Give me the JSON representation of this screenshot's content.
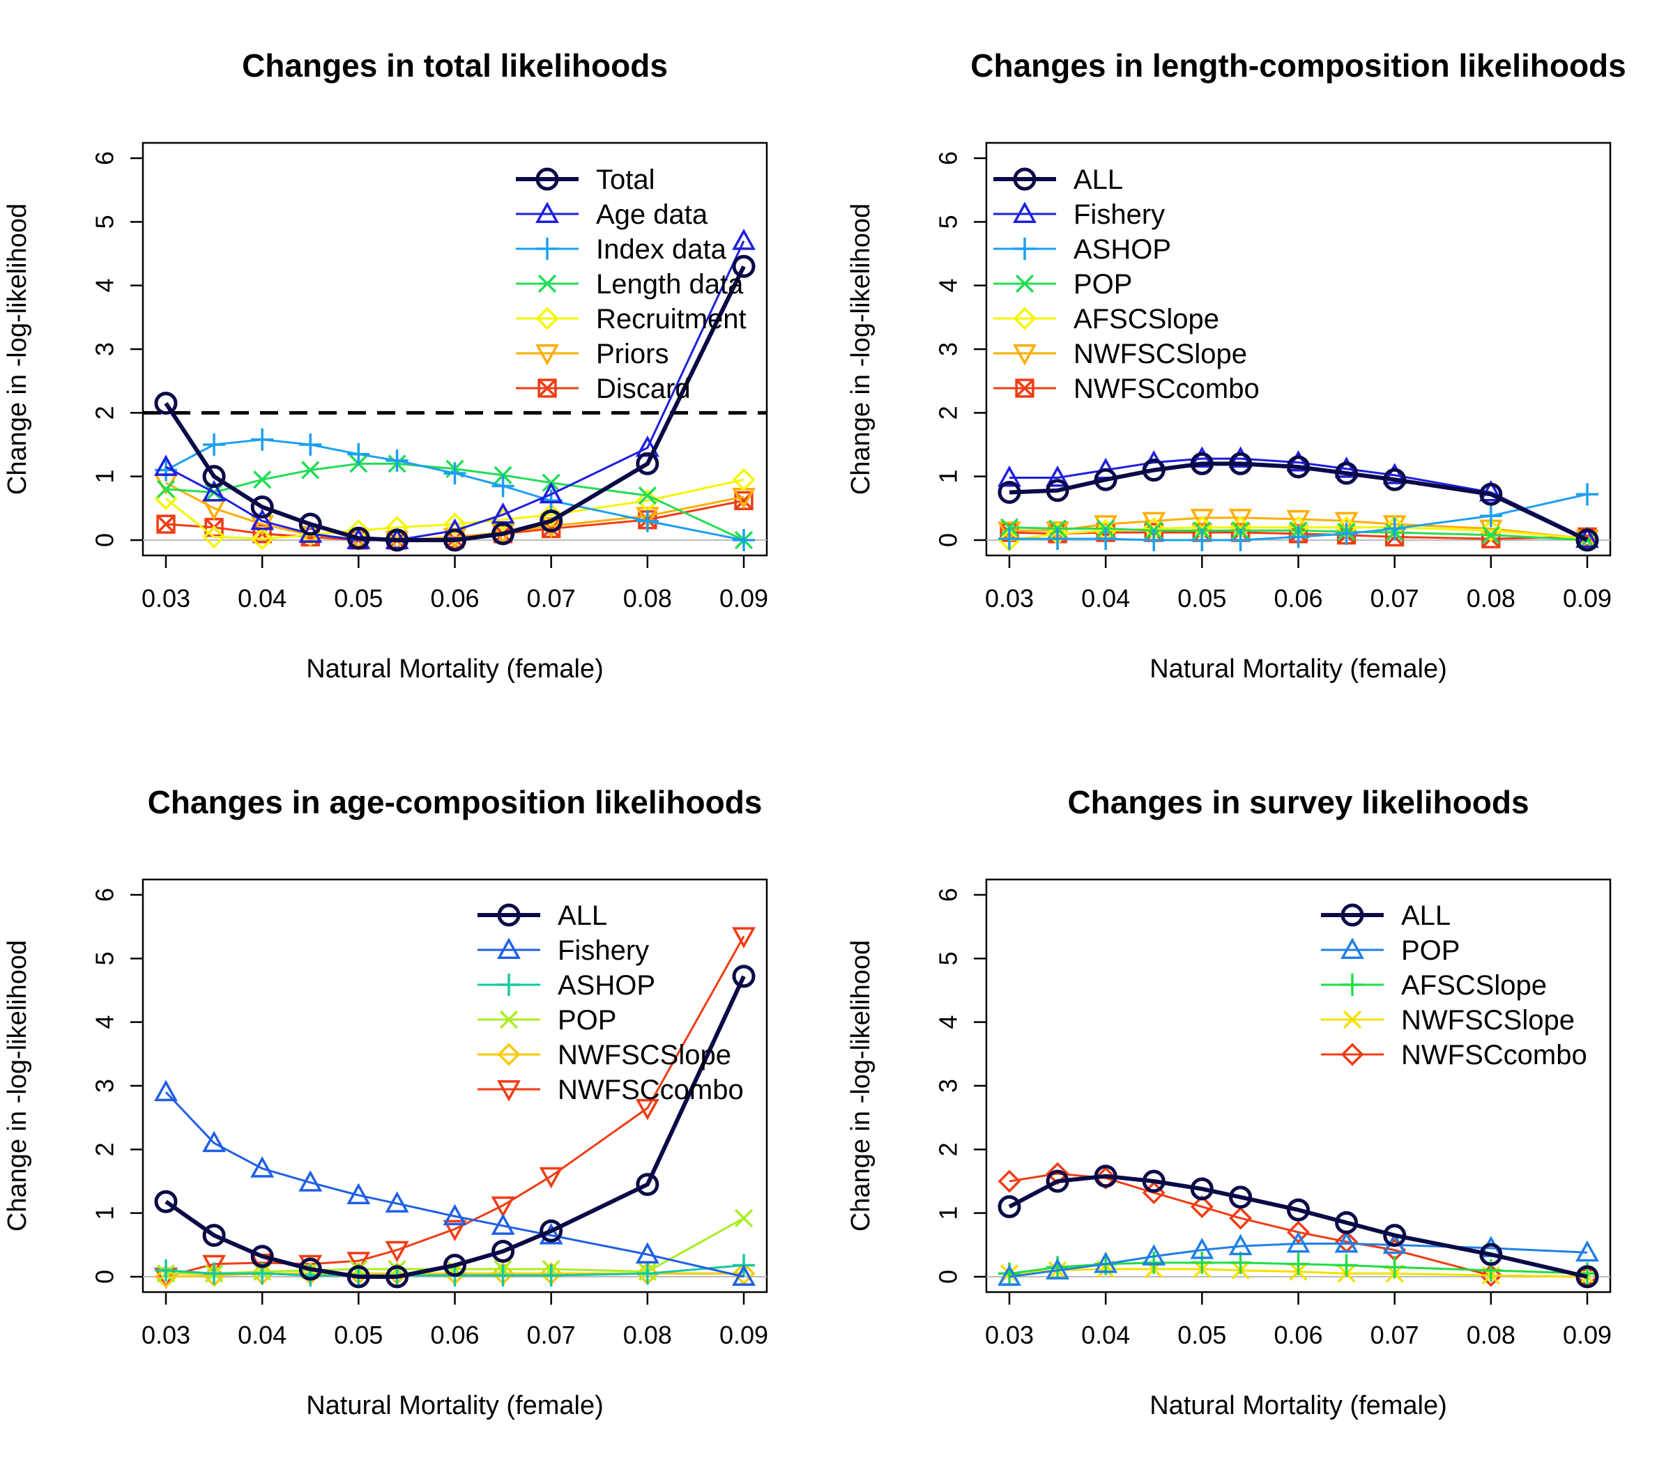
{
  "chart_data": [
    {
      "type": "line",
      "title": "Changes in total likelihoods",
      "xlabel": "Natural Mortality (female)",
      "ylabel": "Change in -log-likelihood",
      "xlim": [
        0.03,
        0.09
      ],
      "ylim": [
        0,
        6
      ],
      "xticks": [
        "0.03",
        "0.04",
        "0.05",
        "0.06",
        "0.07",
        "0.08",
        "0.09"
      ],
      "yticks": [
        "0",
        "1",
        "2",
        "3",
        "4",
        "5",
        "6"
      ],
      "x": [
        0.03,
        0.035,
        0.04,
        0.045,
        0.05,
        0.054,
        0.06,
        0.065,
        0.07,
        0.08,
        0.09
      ],
      "legend_position": "top-right",
      "reference_line": 2,
      "series": [
        {
          "name": "Total",
          "color": "#0a0a47",
          "marker": "circle",
          "width": 6,
          "values": [
            2.15,
            1.0,
            0.52,
            0.25,
            0.03,
            0.0,
            0.0,
            0.1,
            0.3,
            1.2,
            4.3
          ]
        },
        {
          "name": "Age data",
          "color": "#1f1fe0",
          "marker": "triangle-up",
          "width": 3,
          "values": [
            1.15,
            0.75,
            0.3,
            0.1,
            0.0,
            0.0,
            0.15,
            0.4,
            0.72,
            1.45,
            4.7
          ]
        },
        {
          "name": "Index data",
          "color": "#1c9ff0",
          "marker": "plus",
          "width": 3,
          "values": [
            1.1,
            1.5,
            1.58,
            1.5,
            1.35,
            1.25,
            1.05,
            0.85,
            0.62,
            0.3,
            0.0
          ]
        },
        {
          "name": "Length data",
          "color": "#22dd55",
          "marker": "cross",
          "width": 3,
          "values": [
            0.8,
            0.75,
            0.95,
            1.1,
            1.2,
            1.2,
            1.12,
            1.02,
            0.9,
            0.7,
            0.0
          ]
        },
        {
          "name": "Recruitment",
          "color": "#f5f500",
          "marker": "diamond",
          "width": 3,
          "values": [
            0.65,
            0.05,
            0.02,
            0.08,
            0.15,
            0.2,
            0.25,
            0.32,
            0.4,
            0.62,
            0.95
          ]
        },
        {
          "name": "Priors",
          "color": "#ffae00",
          "marker": "triangle-down",
          "width": 3,
          "values": [
            0.9,
            0.5,
            0.25,
            0.08,
            0.02,
            0.0,
            0.05,
            0.12,
            0.22,
            0.38,
            0.68
          ]
        },
        {
          "name": "Discard",
          "color": "#f03c14",
          "marker": "square-x",
          "width": 3,
          "values": [
            0.25,
            0.2,
            0.1,
            0.05,
            0.0,
            0.0,
            0.02,
            0.1,
            0.18,
            0.32,
            0.62
          ]
        }
      ]
    },
    {
      "type": "line",
      "title": "Changes in length-composition likelihoods",
      "xlabel": "Natural Mortality (female)",
      "ylabel": "Change in -log-likelihood",
      "xlim": [
        0.03,
        0.09
      ],
      "ylim": [
        0,
        6
      ],
      "xticks": [
        "0.03",
        "0.04",
        "0.05",
        "0.06",
        "0.07",
        "0.08",
        "0.09"
      ],
      "yticks": [
        "0",
        "1",
        "2",
        "3",
        "4",
        "5",
        "6"
      ],
      "x": [
        0.03,
        0.035,
        0.04,
        0.045,
        0.05,
        0.054,
        0.06,
        0.065,
        0.07,
        0.08,
        0.09
      ],
      "legend_position": "top-left",
      "series": [
        {
          "name": "ALL",
          "color": "#0a0a47",
          "marker": "circle",
          "width": 6,
          "values": [
            0.75,
            0.78,
            0.95,
            1.1,
            1.2,
            1.2,
            1.15,
            1.05,
            0.95,
            0.72,
            0.0
          ]
        },
        {
          "name": "Fishery",
          "color": "#1f1fe0",
          "marker": "triangle-up",
          "width": 3,
          "values": [
            0.98,
            0.98,
            1.1,
            1.22,
            1.28,
            1.28,
            1.22,
            1.12,
            1.02,
            0.75,
            0.02
          ]
        },
        {
          "name": "ASHOP",
          "color": "#1c9ff0",
          "marker": "plus",
          "width": 3,
          "values": [
            0.02,
            0.02,
            0.02,
            0.0,
            0.0,
            0.0,
            0.05,
            0.1,
            0.18,
            0.38,
            0.72
          ]
        },
        {
          "name": "POP",
          "color": "#22dd55",
          "marker": "cross",
          "width": 3,
          "values": [
            0.2,
            0.18,
            0.18,
            0.15,
            0.15,
            0.15,
            0.15,
            0.13,
            0.12,
            0.08,
            0.0
          ]
        },
        {
          "name": "AFSCSlope",
          "color": "#f5f500",
          "marker": "diamond",
          "width": 3,
          "values": [
            0.0,
            0.1,
            0.15,
            0.18,
            0.2,
            0.2,
            0.2,
            0.2,
            0.2,
            0.15,
            0.02
          ]
        },
        {
          "name": "NWFSCSlope",
          "color": "#ffae00",
          "marker": "triangle-down",
          "width": 3,
          "values": [
            0.15,
            0.15,
            0.25,
            0.3,
            0.35,
            0.35,
            0.33,
            0.3,
            0.25,
            0.18,
            0.02
          ]
        },
        {
          "name": "NWFSCcombo",
          "color": "#f03c14",
          "marker": "square-x",
          "width": 3,
          "values": [
            0.12,
            0.1,
            0.12,
            0.12,
            0.12,
            0.12,
            0.1,
            0.08,
            0.05,
            0.02,
            0.05
          ]
        }
      ]
    },
    {
      "type": "line",
      "title": "Changes in age-composition likelihoods",
      "xlabel": "Natural Mortality (female)",
      "ylabel": "Change in -log-likelihood",
      "xlim": [
        0.03,
        0.09
      ],
      "ylim": [
        0,
        6
      ],
      "xticks": [
        "0.03",
        "0.04",
        "0.05",
        "0.06",
        "0.07",
        "0.08",
        "0.09"
      ],
      "yticks": [
        "0",
        "1",
        "2",
        "3",
        "4",
        "5",
        "6"
      ],
      "x": [
        0.03,
        0.035,
        0.04,
        0.045,
        0.05,
        0.054,
        0.06,
        0.065,
        0.07,
        0.08,
        0.09
      ],
      "legend_position": "top-right",
      "series": [
        {
          "name": "ALL",
          "color": "#0a0a47",
          "marker": "circle",
          "width": 6,
          "values": [
            1.18,
            0.65,
            0.32,
            0.12,
            0.0,
            0.0,
            0.18,
            0.4,
            0.72,
            1.45,
            4.72
          ]
        },
        {
          "name": "Fishery",
          "color": "#1f5fe6",
          "marker": "triangle-up",
          "width": 3,
          "values": [
            2.9,
            2.1,
            1.7,
            1.48,
            1.28,
            1.15,
            0.95,
            0.8,
            0.65,
            0.35,
            0.0
          ]
        },
        {
          "name": "ASHOP",
          "color": "#14c8a0",
          "marker": "plus",
          "width": 3,
          "values": [
            0.1,
            0.05,
            0.05,
            0.02,
            0.02,
            0.02,
            0.02,
            0.02,
            0.02,
            0.05,
            0.18
          ]
        },
        {
          "name": "POP",
          "color": "#a8ee22",
          "marker": "cross",
          "width": 3,
          "values": [
            0.05,
            0.05,
            0.08,
            0.1,
            0.12,
            0.12,
            0.12,
            0.12,
            0.12,
            0.08,
            0.92
          ]
        },
        {
          "name": "NWFSCSlope",
          "color": "#ffc800",
          "marker": "diamond",
          "width": 3,
          "values": [
            0.0,
            0.02,
            0.05,
            0.05,
            0.05,
            0.05,
            0.05,
            0.05,
            0.05,
            0.05,
            0.05
          ]
        },
        {
          "name": "NWFSCcombo",
          "color": "#f03c14",
          "marker": "triangle-down",
          "width": 3,
          "values": [
            0.0,
            0.2,
            0.22,
            0.2,
            0.25,
            0.42,
            0.75,
            1.12,
            1.58,
            2.65,
            5.35
          ]
        }
      ]
    },
    {
      "type": "line",
      "title": "Changes in survey likelihoods",
      "xlabel": "Natural Mortality (female)",
      "ylabel": "Change in -log-likelihood",
      "xlim": [
        0.03,
        0.09
      ],
      "ylim": [
        0,
        6
      ],
      "xticks": [
        "0.03",
        "0.04",
        "0.05",
        "0.06",
        "0.07",
        "0.08",
        "0.09"
      ],
      "yticks": [
        "0",
        "1",
        "2",
        "3",
        "4",
        "5",
        "6"
      ],
      "x": [
        0.03,
        0.035,
        0.04,
        0.045,
        0.05,
        0.054,
        0.06,
        0.065,
        0.07,
        0.08,
        0.09
      ],
      "legend_position": "top-right",
      "series": [
        {
          "name": "ALL",
          "color": "#0a0a47",
          "marker": "circle",
          "width": 6,
          "values": [
            1.1,
            1.5,
            1.58,
            1.5,
            1.38,
            1.25,
            1.05,
            0.85,
            0.65,
            0.35,
            0.0
          ]
        },
        {
          "name": "POP",
          "color": "#1f7fe6",
          "marker": "triangle-up",
          "width": 3,
          "values": [
            0.0,
            0.1,
            0.2,
            0.32,
            0.42,
            0.48,
            0.52,
            0.52,
            0.5,
            0.45,
            0.38
          ]
        },
        {
          "name": "AFSCSlope",
          "color": "#22dd44",
          "marker": "plus",
          "width": 3,
          "values": [
            0.05,
            0.15,
            0.2,
            0.22,
            0.22,
            0.22,
            0.2,
            0.18,
            0.15,
            0.1,
            0.05
          ]
        },
        {
          "name": "NWFSCSlope",
          "color": "#f5e000",
          "marker": "cross",
          "width": 3,
          "values": [
            0.05,
            0.1,
            0.12,
            0.12,
            0.12,
            0.1,
            0.08,
            0.05,
            0.05,
            0.02,
            0.0
          ]
        },
        {
          "name": "NWFSCcombo",
          "color": "#f03c14",
          "marker": "diamond",
          "width": 3,
          "values": [
            1.5,
            1.62,
            1.55,
            1.32,
            1.1,
            0.92,
            0.7,
            0.55,
            0.42,
            0.02,
            0.0
          ]
        }
      ]
    }
  ]
}
